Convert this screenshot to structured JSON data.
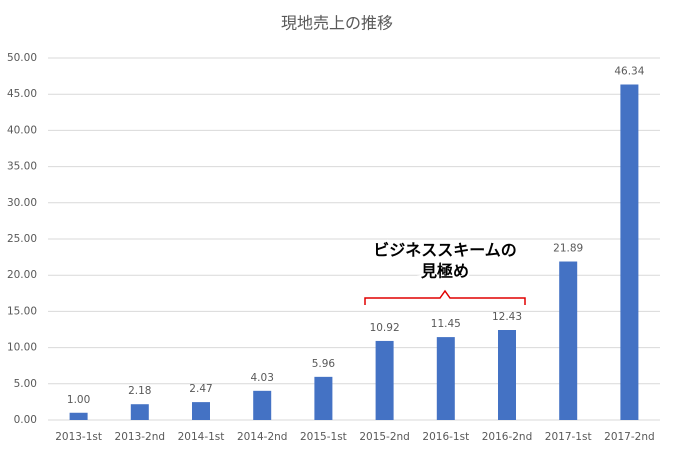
{
  "chart_data": {
    "type": "bar",
    "title": "現地売上の推移",
    "categories": [
      "2013-1st",
      "2013-2nd",
      "2014-1st",
      "2014-2nd",
      "2015-1st",
      "2015-2nd",
      "2016-1st",
      "2016-2nd",
      "2017-1st",
      "2017-2nd"
    ],
    "values": [
      1.0,
      2.18,
      2.47,
      4.03,
      5.96,
      10.92,
      11.45,
      12.43,
      21.89,
      46.34
    ],
    "value_labels": [
      "1.00",
      "2.18",
      "2.47",
      "4.03",
      "5.96",
      "10.92",
      "11.45",
      "12.43",
      "21.89",
      "46.34"
    ],
    "color": "#4472c4",
    "ylim": [
      0,
      50
    ],
    "yticks": [
      {
        "value": 0,
        "label": "0.00"
      },
      {
        "value": 5,
        "label": "5.00"
      },
      {
        "value": 10,
        "label": "10.00"
      },
      {
        "value": 15,
        "label": "15.00"
      },
      {
        "value": 20,
        "label": "20.00"
      },
      {
        "value": 25,
        "label": "25.00"
      },
      {
        "value": 30,
        "label": "30.00"
      },
      {
        "value": 35,
        "label": "35.00"
      },
      {
        "value": 40,
        "label": "40.00"
      },
      {
        "value": 45,
        "label": "45.00"
      },
      {
        "value": 50,
        "label": "50.00"
      }
    ],
    "grid": true,
    "annotation": [
      "ビジネススキームの",
      "見極め"
    ]
  }
}
